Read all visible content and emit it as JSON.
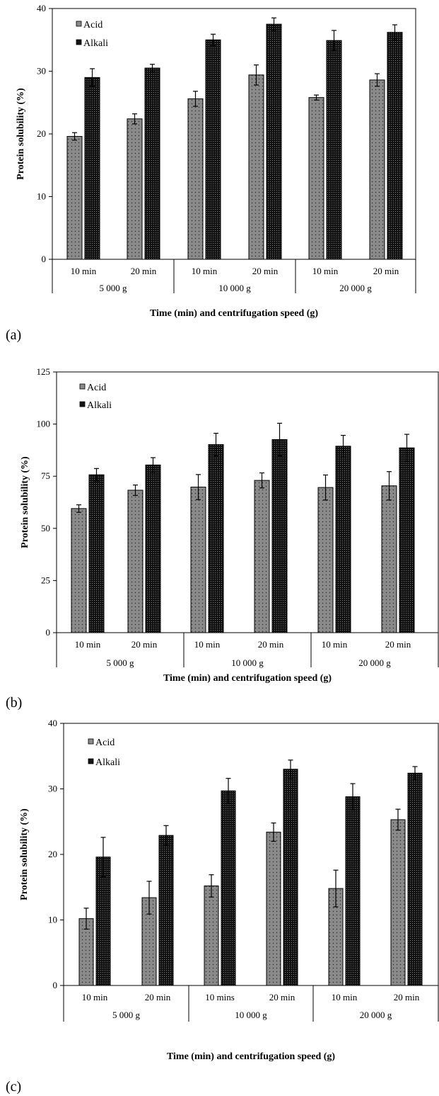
{
  "colors": {
    "acid": "#8a8a8a",
    "alkali": "#141414",
    "axis": "#000000"
  },
  "chart_data": [
    {
      "type": "bar",
      "panel_label": "(a)",
      "ylabel": "Protein solubility (%)",
      "xlabel": "Time (min) and centrifugation speed (g)",
      "ylim": [
        0,
        40
      ],
      "yticks": [
        "0",
        "10",
        "20",
        "30",
        "40"
      ],
      "categories": [
        "10 min",
        "20 min",
        "10 min",
        "20 min",
        "10 min",
        "20 min"
      ],
      "groups": [
        "5 000 g",
        "10 000 g",
        "20 000 g"
      ],
      "legend": [
        "Acid",
        "Alkali"
      ],
      "legend_position": "top-left",
      "grid": false,
      "series": [
        {
          "name": "Acid",
          "values": [
            19.6,
            22.4,
            25.6,
            29.4,
            25.8,
            28.6
          ],
          "errors": [
            0.6,
            0.8,
            1.2,
            1.6,
            0.4,
            1.0
          ]
        },
        {
          "name": "Alkali",
          "values": [
            29.0,
            30.5,
            35.0,
            37.5,
            34.9,
            36.2
          ],
          "errors": [
            1.4,
            0.6,
            0.9,
            1.0,
            1.6,
            1.2
          ]
        }
      ]
    },
    {
      "type": "bar",
      "panel_label": "(b)",
      "ylabel": "Protein solubility (%)",
      "xlabel": "Time (min) and centrifugation speed (g)",
      "ylim": [
        0,
        125
      ],
      "yticks": [
        "0",
        "25",
        "50",
        "75",
        "100",
        "125"
      ],
      "categories": [
        "10 min",
        "20 min",
        "10 min",
        "20 min",
        "10 min",
        "20 min"
      ],
      "groups": [
        "5 000 g",
        "10 000 g",
        "20 000 g"
      ],
      "legend": [
        "Acid",
        "Alkali"
      ],
      "legend_position": "top-left",
      "grid": false,
      "series": [
        {
          "name": "Acid",
          "values": [
            59.5,
            68.3,
            69.8,
            73.0,
            69.6,
            70.4
          ],
          "errors": [
            1.8,
            2.5,
            6.0,
            3.6,
            6.0,
            6.8
          ]
        },
        {
          "name": "Alkali",
          "values": [
            75.7,
            80.4,
            90.2,
            92.6,
            89.4,
            88.6
          ],
          "errors": [
            3.0,
            3.5,
            5.4,
            7.8,
            5.2,
            6.5
          ]
        }
      ]
    },
    {
      "type": "bar",
      "panel_label": "(c)",
      "ylabel": "Protein solubility (%)",
      "xlabel": "Time (min) and centrifugation speed (g)",
      "ylim": [
        0,
        40
      ],
      "yticks": [
        "0",
        "10",
        "20",
        "30",
        "40"
      ],
      "categories": [
        "10 min",
        "20 min",
        "10 mins",
        "20 min",
        "10 min",
        "20 min"
      ],
      "groups": [
        "5 000 g",
        "10 000 g",
        "20 000 g"
      ],
      "legend": [
        "Acid",
        "Alkali"
      ],
      "legend_position": "top-left",
      "grid": false,
      "series": [
        {
          "name": "Acid",
          "values": [
            10.2,
            13.4,
            15.2,
            23.4,
            14.8,
            25.3
          ],
          "errors": [
            1.6,
            2.5,
            1.7,
            1.4,
            2.8,
            1.6
          ]
        },
        {
          "name": "Alkali",
          "values": [
            19.6,
            22.9,
            29.7,
            33.0,
            28.8,
            32.4
          ],
          "errors": [
            3.0,
            1.5,
            1.9,
            1.4,
            2.0,
            1.0
          ]
        }
      ]
    }
  ]
}
